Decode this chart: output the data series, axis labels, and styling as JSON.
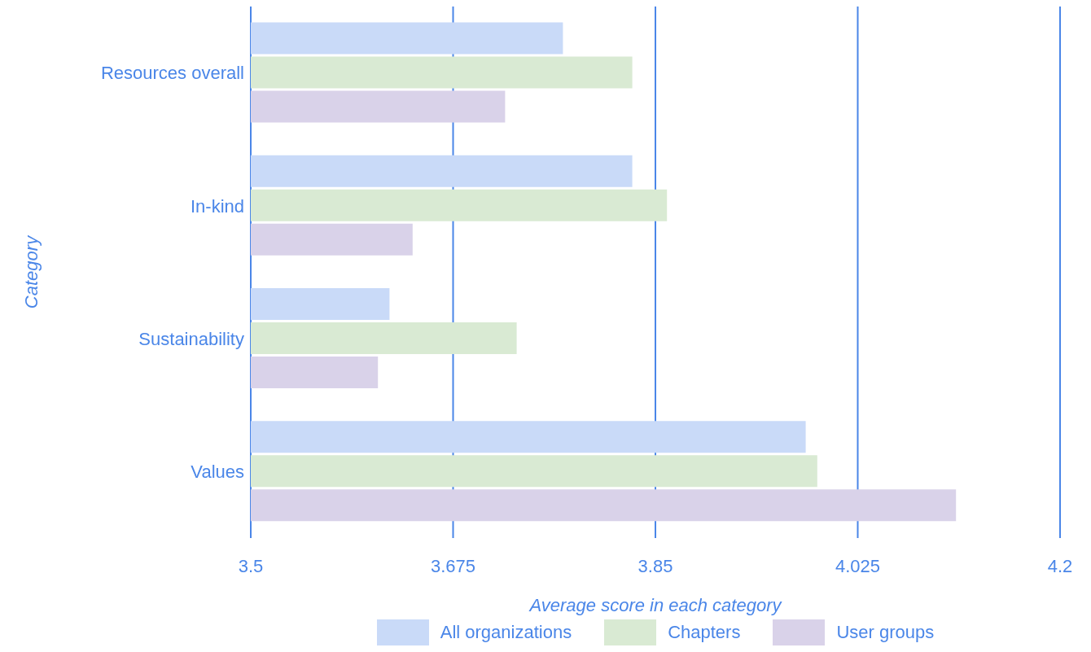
{
  "chart_data": {
    "type": "bar",
    "orientation": "horizontal",
    "xlabel": "Average score in each category",
    "ylabel": "Category",
    "categories": [
      "Resources overall",
      "In-kind",
      "Sustainability",
      "Values"
    ],
    "series": [
      {
        "name": "All organizations",
        "color": "#c9daf8",
        "values": [
          3.77,
          3.83,
          3.62,
          3.98
        ]
      },
      {
        "name": "Chapters",
        "color": "#d9ead3",
        "values": [
          3.83,
          3.86,
          3.73,
          3.99
        ]
      },
      {
        "name": "User groups",
        "color": "#d9d2e9",
        "values": [
          3.72,
          3.64,
          3.61,
          4.11
        ]
      }
    ],
    "xlim": [
      3.5,
      4.2
    ],
    "xticks": [
      3.5,
      3.675,
      3.85,
      4.025,
      4.2
    ],
    "grid": "x",
    "legend": "bottom"
  }
}
